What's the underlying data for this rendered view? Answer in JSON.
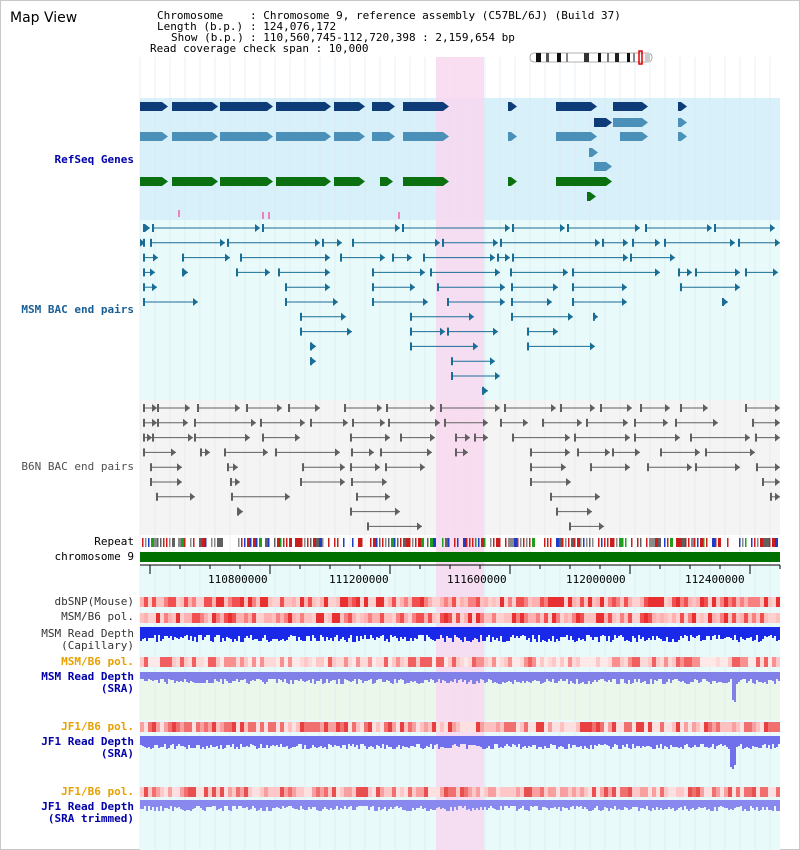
{
  "view": {
    "title": "Map View"
  },
  "info": {
    "chromosome_key": "Chromosome",
    "chromosome_val": ": Chromosome 9, reference assembly (C57BL/6J) (Build 37)",
    "length_key": "Length (b.p.)",
    "length_val": ": 124,076,172",
    "show_key": "Show (b.p.)",
    "show_val": ": 110,560,745-112,720,398 : 2,159,654 bp",
    "coverage": "Read coverage check span : 10,000"
  },
  "tracks": {
    "refseq": {
      "label": "RefSeq Genes",
      "color": "#0000aa"
    },
    "msm_bac": {
      "label": "MSM BAC end pairs",
      "color": "#1a5e96"
    },
    "b6n_bac": {
      "label": "B6N BAC end pairs",
      "color": "#505050"
    },
    "repeat": {
      "label": "Repeat"
    },
    "chromosome": {
      "label": "chromosome 9"
    },
    "dbsnp": {
      "label": "dbSNP(Mouse)"
    },
    "msm_b6_pol_1": {
      "label": "MSM/B6 pol."
    },
    "msm_depth_cap": {
      "label_line1": "MSM Read Depth",
      "label_line2": "(Capillary)"
    },
    "msm_b6_pol_2": {
      "label": "MSM/B6 pol.",
      "color": "#e8a000"
    },
    "msm_depth_sra": {
      "label_line1": "MSM Read Depth",
      "label_line2": "(SRA)",
      "color": "#0000aa"
    },
    "jf1_b6_pol_1": {
      "label": "JF1/B6 pol.",
      "color": "#e8a000"
    },
    "jf1_depth_sra": {
      "label_line1": "JF1 Read Depth",
      "label_line2": "(SRA)",
      "color": "#0000aa"
    },
    "jf1_b6_pol_2": {
      "label": "JF1/B6 pol.",
      "color": "#e8a000"
    },
    "jf1_depth_trim": {
      "label_line1": "JF1 Read Depth",
      "label_line2": "(SRA trimmed)",
      "color": "#0000aa"
    }
  },
  "ruler": {
    "ticks": [
      "110800000",
      "111200000",
      "111600000",
      "112000000",
      "112400000"
    ]
  },
  "colors": {
    "refseq_bg": "#d8f0fa",
    "msm_bg": "#e8fafa",
    "b6n_bg": "#f4f4f4",
    "highlight": "#f8d8f0",
    "gene_dark": "#0d3c78",
    "gene_mid": "#4a90b8",
    "gene_green": "#0a7010",
    "chrom_green": "#007000"
  }
}
